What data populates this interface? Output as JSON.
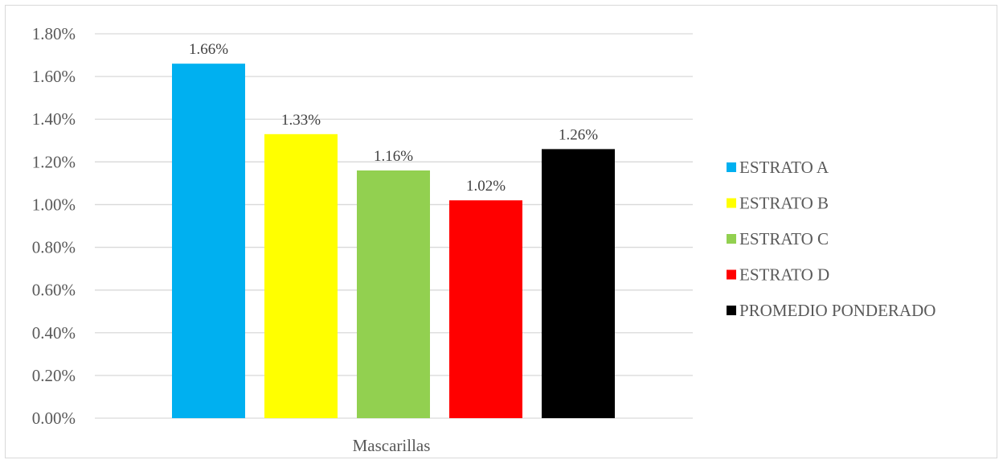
{
  "chart_data": {
    "type": "bar",
    "categories": [
      "Mascarillas"
    ],
    "series": [
      {
        "name": "ESTRATO A",
        "values": [
          1.66
        ],
        "label": "1.66%",
        "color": "#00b0f0"
      },
      {
        "name": "ESTRATO B",
        "values": [
          1.33
        ],
        "label": "1.33%",
        "color": "#ffff00"
      },
      {
        "name": "ESTRATO C",
        "values": [
          1.16
        ],
        "label": "1.16%",
        "color": "#92d050"
      },
      {
        "name": "ESTRATO D",
        "values": [
          1.02
        ],
        "label": "1.02%",
        "color": "#ff0000"
      },
      {
        "name": "PROMEDIO PONDERADO",
        "values": [
          1.26
        ],
        "label": "1.26%",
        "color": "#000000"
      }
    ],
    "ylim": [
      0,
      1.8
    ],
    "y_ticks": [
      "0.00%",
      "0.20%",
      "0.40%",
      "0.60%",
      "0.80%",
      "1.00%",
      "1.20%",
      "1.40%",
      "1.60%",
      "1.80%"
    ],
    "grid": true,
    "legend_position": "right",
    "title": "",
    "xlabel": "",
    "ylabel": ""
  }
}
